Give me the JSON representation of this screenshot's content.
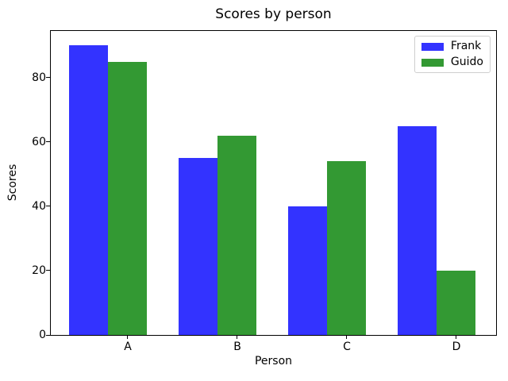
{
  "chart_data": {
    "type": "bar",
    "title": "Scores by person",
    "xlabel": "Person",
    "ylabel": "Scores",
    "categories": [
      "A",
      "B",
      "C",
      "D"
    ],
    "series": [
      {
        "name": "Frank",
        "color": "#3333ff",
        "values": [
          90,
          55,
          40,
          65
        ]
      },
      {
        "name": "Guido",
        "color": "#339933",
        "values": [
          85,
          62,
          54,
          20
        ]
      }
    ],
    "ylim": [
      0,
      94.5
    ],
    "yticks": [
      0,
      20,
      40,
      60,
      80
    ],
    "grid": false,
    "legend_position": "upper right",
    "bar_width_ratio": 0.35,
    "background": "#ffffff",
    "spine_color": "#000000"
  }
}
